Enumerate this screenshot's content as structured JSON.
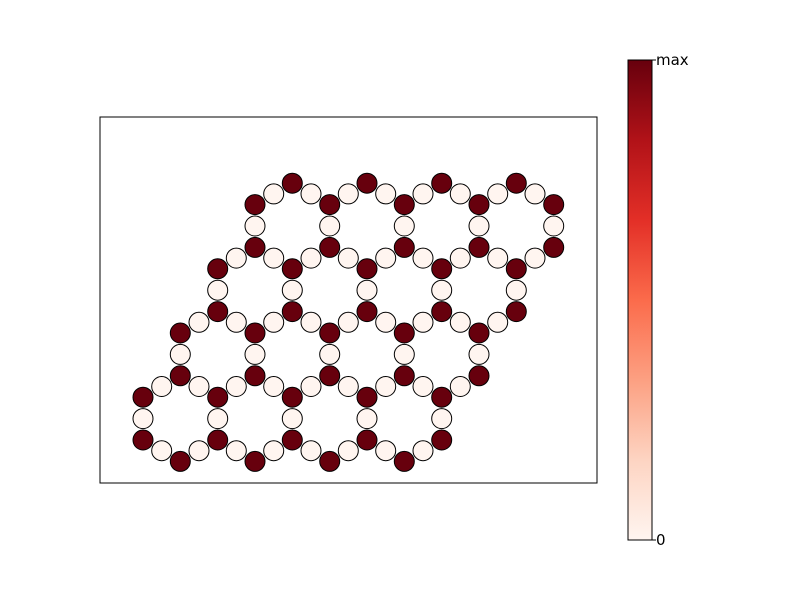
{
  "colorbar": {
    "max_label": "max",
    "min_label": "0",
    "colors": [
      "#fff5f0",
      "#fdd4c2",
      "#fca082",
      "#fb6b4b",
      "#e32f27",
      "#b11218",
      "#67000d"
    ]
  },
  "lattice": {
    "cells": [
      [
        0,
        3
      ],
      [
        1,
        3
      ],
      [
        2,
        3
      ],
      [
        3,
        3
      ],
      [
        0,
        2
      ],
      [
        1,
        2
      ],
      [
        2,
        2
      ],
      [
        3,
        2
      ],
      [
        0,
        1
      ],
      [
        1,
        1
      ],
      [
        2,
        1
      ],
      [
        3,
        1
      ],
      [
        0,
        0
      ],
      [
        1,
        0
      ],
      [
        2,
        0
      ],
      [
        3,
        0
      ]
    ],
    "empty_color": "#fff5f0",
    "filled_color": "#67000d"
  }
}
